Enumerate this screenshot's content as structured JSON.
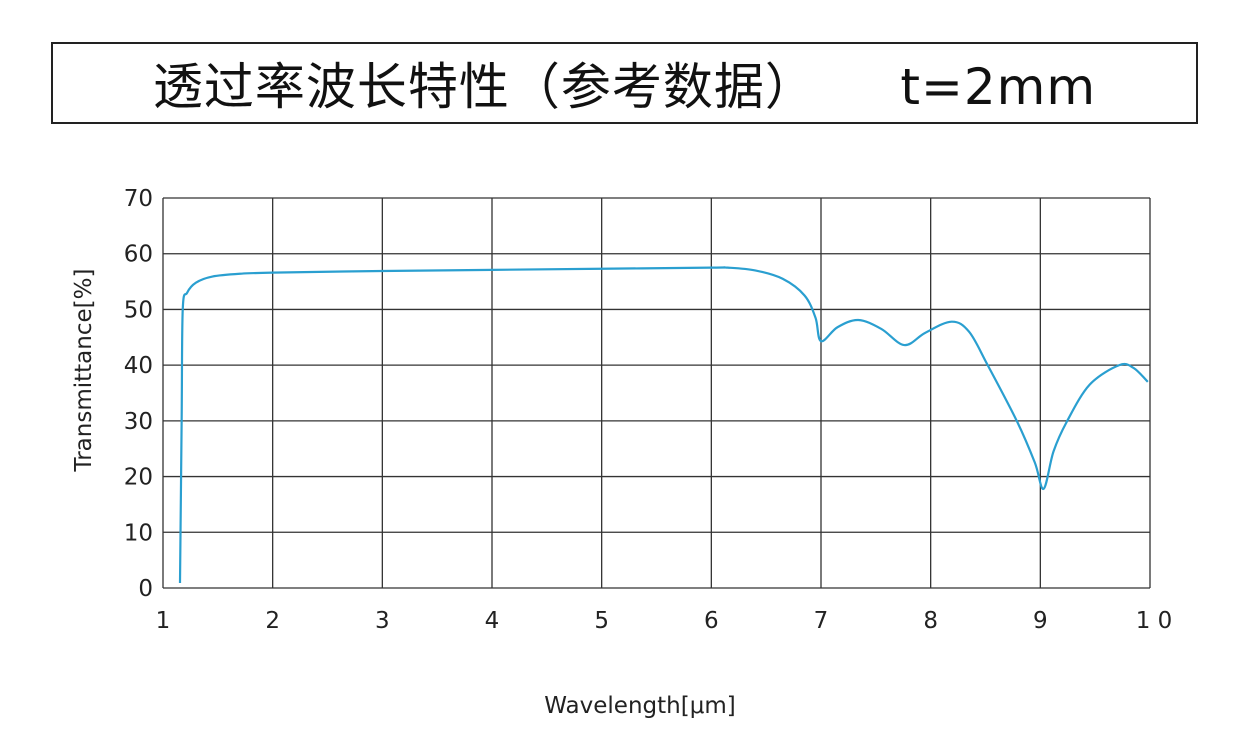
{
  "header": {
    "title": "透过率波长特性（参考数据）     t=2mm"
  },
  "chart_data": {
    "type": "line",
    "title": "透过率波长特性（参考数据）     t=2mm",
    "xlabel": "Wavelength[μm]",
    "ylabel": "Transmittance[%]",
    "xlim": [
      1,
      10
    ],
    "ylim": [
      0,
      70
    ],
    "xticks": [
      "1",
      "2",
      "3",
      "4",
      "5",
      "6",
      "7",
      "8",
      "9",
      "1 0"
    ],
    "yticks": [
      "0",
      "10",
      "20",
      "30",
      "40",
      "50",
      "60",
      "70"
    ],
    "grid": true,
    "line_color": "#2a9fd0",
    "series": [
      {
        "x": [
          1.155,
          1.17,
          1.18,
          1.22,
          1.3,
          1.45,
          1.7,
          2.0,
          3.0,
          4.0,
          5.0,
          6.0,
          6.15,
          6.4,
          6.65,
          6.85,
          6.95,
          7.0,
          7.15,
          7.34,
          7.55,
          7.76,
          7.95,
          8.19,
          8.35,
          8.52,
          8.79,
          8.95,
          9.03,
          9.12,
          9.24,
          9.45,
          9.72,
          9.85,
          9.98
        ],
        "y": [
          0.9,
          30,
          50,
          53,
          54.8,
          55.9,
          56.4,
          56.6,
          56.9,
          57.1,
          57.3,
          57.5,
          57.5,
          57.0,
          55.5,
          52.5,
          48.5,
          44.3,
          46.8,
          48.1,
          46.5,
          43.6,
          45.8,
          47.8,
          46.0,
          40.0,
          29.8,
          22.5,
          17.8,
          24.5,
          29.8,
          36.5,
          40.0,
          39.5,
          37.0
        ]
      }
    ]
  }
}
